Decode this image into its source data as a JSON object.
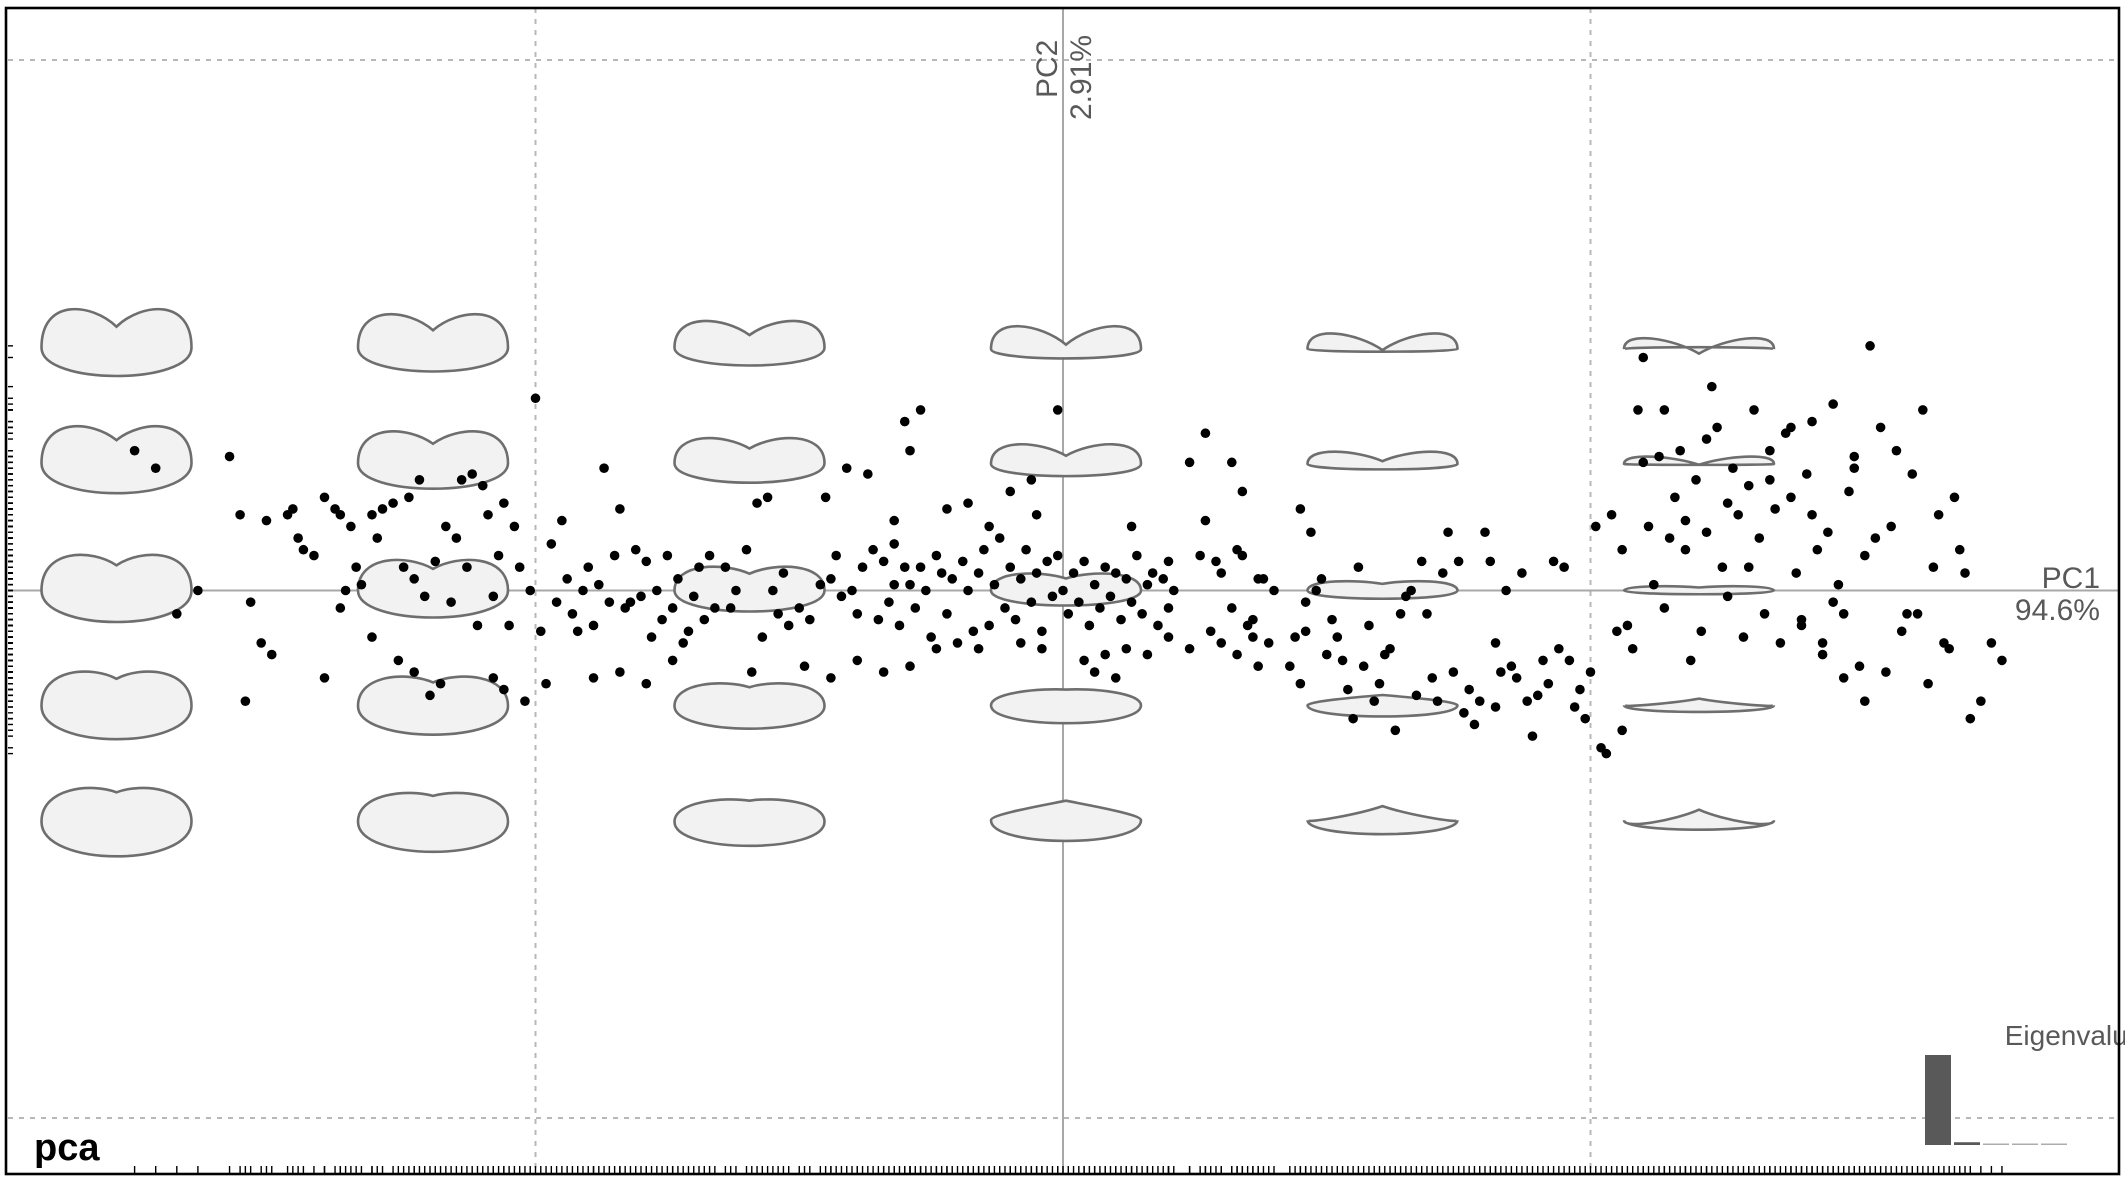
{
  "title": "pca",
  "chart_data": {
    "type": "scatter",
    "xlabel": "PC1",
    "ylabel": "PC2",
    "x_variance_label": "94.6%",
    "y_variance_label": "2.91%",
    "xlim": [
      -0.2,
      0.2
    ],
    "ylim": [
      -0.1,
      0.1
    ],
    "grid": true,
    "point_color": "#000000",
    "shape_fill": "#f2f2f2",
    "shape_stroke": "#6e6e6e",
    "morphospace": {
      "columns_pc1": [
        -0.18,
        -0.12,
        -0.06,
        0.0,
        0.06,
        0.12
      ],
      "rows_pc2": [
        0.042,
        0.022,
        0.0,
        -0.02,
        -0.04
      ]
    },
    "eigenvalues": {
      "title": "Eigenvalues",
      "values": [
        94.6,
        2.91,
        1.2,
        0.6,
        0.4
      ]
    },
    "points": [
      [
        -0.176,
        0.024
      ],
      [
        -0.172,
        0.021
      ],
      [
        -0.164,
        0.0
      ],
      [
        -0.168,
        -0.004
      ],
      [
        -0.158,
        0.023
      ],
      [
        -0.156,
        0.013
      ],
      [
        -0.154,
        -0.002
      ],
      [
        -0.155,
        -0.019
      ],
      [
        -0.152,
        -0.009
      ],
      [
        -0.151,
        0.012
      ],
      [
        -0.15,
        -0.011
      ],
      [
        -0.147,
        0.013
      ],
      [
        -0.146,
        0.014
      ],
      [
        -0.145,
        0.009
      ],
      [
        -0.144,
        0.007
      ],
      [
        -0.142,
        0.006
      ],
      [
        -0.14,
        -0.015
      ],
      [
        -0.14,
        0.016
      ],
      [
        -0.138,
        0.014
      ],
      [
        -0.137,
        0.013
      ],
      [
        -0.137,
        -0.003
      ],
      [
        -0.136,
        0.0
      ],
      [
        -0.135,
        0.011
      ],
      [
        -0.134,
        0.004
      ],
      [
        -0.133,
        0.001
      ],
      [
        -0.131,
        0.013
      ],
      [
        -0.131,
        -0.008
      ],
      [
        -0.13,
        0.009
      ],
      [
        -0.129,
        0.014
      ],
      [
        -0.127,
        0.015
      ],
      [
        -0.126,
        -0.012
      ],
      [
        -0.125,
        0.004
      ],
      [
        -0.124,
        0.016
      ],
      [
        -0.123,
        0.002
      ],
      [
        -0.123,
        -0.014
      ],
      [
        -0.122,
        0.019
      ],
      [
        -0.121,
        -0.001
      ],
      [
        -0.12,
        -0.018
      ],
      [
        -0.119,
        0.005
      ],
      [
        -0.118,
        -0.016
      ],
      [
        -0.117,
        0.011
      ],
      [
        -0.116,
        -0.002
      ],
      [
        -0.115,
        0.009
      ],
      [
        -0.114,
        0.019
      ],
      [
        -0.113,
        0.004
      ],
      [
        -0.112,
        0.02
      ],
      [
        -0.111,
        -0.006
      ],
      [
        -0.11,
        0.018
      ],
      [
        -0.109,
        0.013
      ],
      [
        -0.108,
        -0.015
      ],
      [
        -0.108,
        -0.001
      ],
      [
        -0.107,
        0.006
      ],
      [
        -0.106,
        -0.017
      ],
      [
        -0.106,
        0.015
      ],
      [
        -0.105,
        -0.006
      ],
      [
        -0.104,
        0.011
      ],
      [
        -0.103,
        0.004
      ],
      [
        -0.102,
        -0.019
      ],
      [
        -0.101,
        0.0
      ],
      [
        -0.1,
        0.033
      ],
      [
        -0.099,
        -0.007
      ],
      [
        -0.098,
        -0.016
      ],
      [
        -0.097,
        0.008
      ],
      [
        -0.096,
        -0.002
      ],
      [
        -0.095,
        0.012
      ],
      [
        -0.094,
        0.002
      ],
      [
        -0.093,
        -0.004
      ],
      [
        -0.092,
        -0.007
      ],
      [
        -0.091,
        0.0
      ],
      [
        -0.09,
        0.004
      ],
      [
        -0.089,
        -0.006
      ],
      [
        -0.088,
        0.001
      ],
      [
        -0.087,
        0.021
      ],
      [
        -0.086,
        -0.002
      ],
      [
        -0.085,
        0.006
      ],
      [
        -0.084,
        0.014
      ],
      [
        -0.083,
        -0.003
      ],
      [
        -0.082,
        -0.002
      ],
      [
        -0.081,
        0.007
      ],
      [
        -0.08,
        -0.001
      ],
      [
        -0.079,
        0.005
      ],
      [
        -0.078,
        -0.008
      ],
      [
        -0.077,
        0.0
      ],
      [
        -0.076,
        -0.005
      ],
      [
        -0.075,
        0.006
      ],
      [
        -0.074,
        -0.003
      ],
      [
        -0.073,
        0.002
      ],
      [
        -0.072,
        -0.009
      ],
      [
        -0.071,
        -0.007
      ],
      [
        -0.07,
        -0.001
      ],
      [
        -0.069,
        0.004
      ],
      [
        -0.068,
        -0.005
      ],
      [
        -0.067,
        0.006
      ],
      [
        -0.066,
        -0.003
      ],
      [
        -0.064,
        0.004
      ],
      [
        -0.063,
        -0.003
      ],
      [
        -0.062,
        0.0
      ],
      [
        -0.06,
        0.007
      ],
      [
        -0.058,
        0.015
      ],
      [
        -0.057,
        -0.008
      ],
      [
        -0.056,
        0.016
      ],
      [
        -0.055,
        0.0
      ],
      [
        -0.054,
        -0.004
      ],
      [
        -0.053,
        0.003
      ],
      [
        -0.052,
        -0.006
      ],
      [
        -0.05,
        -0.003
      ],
      [
        -0.048,
        -0.005
      ],
      [
        -0.046,
        0.001
      ],
      [
        -0.045,
        0.016
      ],
      [
        -0.044,
        0.002
      ],
      [
        -0.043,
        0.006
      ],
      [
        -0.042,
        -0.001
      ],
      [
        -0.041,
        0.021
      ],
      [
        -0.04,
        0.0
      ],
      [
        -0.039,
        -0.004
      ],
      [
        -0.038,
        0.004
      ],
      [
        -0.037,
        0.02
      ],
      [
        -0.036,
        0.007
      ],
      [
        -0.035,
        -0.005
      ],
      [
        -0.034,
        0.005
      ],
      [
        -0.033,
        -0.002
      ],
      [
        -0.032,
        0.001
      ],
      [
        -0.031,
        -0.006
      ],
      [
        -0.03,
        0.004
      ],
      [
        -0.029,
        0.001
      ],
      [
        -0.028,
        -0.003
      ],
      [
        -0.027,
        0.004
      ],
      [
        -0.026,
        0.0
      ],
      [
        -0.025,
        -0.008
      ],
      [
        -0.024,
        0.006
      ],
      [
        -0.023,
        0.003
      ],
      [
        -0.022,
        -0.004
      ],
      [
        -0.021,
        0.002
      ],
      [
        -0.02,
        -0.009
      ],
      [
        -0.019,
        0.005
      ],
      [
        -0.018,
        0.0
      ],
      [
        -0.017,
        -0.007
      ],
      [
        -0.016,
        0.003
      ],
      [
        -0.015,
        0.007
      ],
      [
        -0.014,
        -0.006
      ],
      [
        -0.013,
        0.001
      ],
      [
        -0.012,
        0.009
      ],
      [
        -0.011,
        -0.003
      ],
      [
        -0.01,
        0.004
      ],
      [
        -0.009,
        -0.005
      ],
      [
        -0.008,
        0.002
      ],
      [
        -0.007,
        0.007
      ],
      [
        -0.006,
        -0.002
      ],
      [
        -0.005,
        0.003
      ],
      [
        -0.004,
        -0.007
      ],
      [
        -0.003,
        0.005
      ],
      [
        -0.002,
        -0.001
      ],
      [
        -0.001,
        0.006
      ],
      [
        0.0,
        0.0
      ],
      [
        0.001,
        -0.004
      ],
      [
        0.002,
        0.003
      ],
      [
        0.003,
        -0.002
      ],
      [
        0.004,
        0.005
      ],
      [
        0.005,
        -0.006
      ],
      [
        0.006,
        0.001
      ],
      [
        0.007,
        -0.003
      ],
      [
        0.008,
        0.004
      ],
      [
        0.009,
        -0.001
      ],
      [
        0.01,
        0.003
      ],
      [
        0.011,
        -0.005
      ],
      [
        0.012,
        0.002
      ],
      [
        0.013,
        -0.002
      ],
      [
        0.014,
        0.006
      ],
      [
        0.015,
        -0.004
      ],
      [
        0.016,
        0.001
      ],
      [
        0.017,
        0.003
      ],
      [
        0.018,
        -0.006
      ],
      [
        0.019,
        0.002
      ],
      [
        0.02,
        -0.003
      ],
      [
        0.021,
        0.0
      ],
      [
        -0.089,
        -0.015
      ],
      [
        -0.084,
        -0.014
      ],
      [
        -0.079,
        -0.016
      ],
      [
        -0.074,
        -0.012
      ],
      [
        -0.059,
        -0.014
      ],
      [
        -0.049,
        -0.013
      ],
      [
        -0.044,
        -0.015
      ],
      [
        -0.039,
        -0.012
      ],
      [
        -0.034,
        -0.014
      ],
      [
        -0.029,
        -0.013
      ],
      [
        -0.024,
        -0.01
      ],
      [
        -0.022,
        0.014
      ],
      [
        -0.018,
        0.015
      ],
      [
        -0.014,
        0.011
      ],
      [
        -0.01,
        0.017
      ],
      [
        -0.006,
        0.019
      ],
      [
        -0.027,
        0.031
      ],
      [
        -0.03,
        0.029
      ],
      [
        -0.029,
        0.024
      ],
      [
        -0.032,
        0.012
      ],
      [
        -0.032,
        0.008
      ],
      [
        -0.016,
        -0.01
      ],
      [
        -0.008,
        -0.009
      ],
      [
        -0.004,
        -0.01
      ],
      [
        0.004,
        -0.012
      ],
      [
        0.006,
        -0.014
      ],
      [
        0.008,
        -0.011
      ],
      [
        0.01,
        -0.015
      ],
      [
        0.012,
        -0.01
      ],
      [
        0.016,
        -0.011
      ],
      [
        0.02,
        -0.008
      ],
      [
        0.024,
        -0.01
      ],
      [
        0.013,
        0.011
      ],
      [
        0.02,
        0.005
      ],
      [
        -0.005,
        0.013
      ],
      [
        -0.001,
        0.031
      ],
      [
        0.027,
        0.027
      ],
      [
        0.024,
        0.022
      ],
      [
        0.027,
        0.012
      ],
      [
        0.033,
        0.007
      ],
      [
        0.032,
        0.022
      ],
      [
        0.026,
        0.006
      ],
      [
        0.029,
        0.005
      ],
      [
        0.03,
        0.003
      ],
      [
        0.034,
        0.006
      ],
      [
        0.037,
        0.002
      ],
      [
        0.032,
        -0.003
      ],
      [
        0.036,
        -0.005
      ],
      [
        0.036,
        -0.008
      ],
      [
        0.028,
        -0.007
      ],
      [
        0.03,
        -0.009
      ],
      [
        0.033,
        -0.011
      ],
      [
        0.039,
        -0.009
      ],
      [
        0.034,
        0.017
      ],
      [
        0.035,
        -0.006
      ],
      [
        0.037,
        -0.013
      ],
      [
        0.04,
        0.0
      ],
      [
        0.038,
        0.002
      ],
      [
        0.045,
        0.014
      ],
      [
        0.047,
        0.01
      ],
      [
        0.046,
        -0.002
      ],
      [
        0.046,
        -0.007
      ],
      [
        0.043,
        -0.013
      ],
      [
        0.044,
        -0.008
      ],
      [
        0.048,
        0.0
      ],
      [
        0.045,
        -0.016
      ],
      [
        0.049,
        0.002
      ],
      [
        0.05,
        -0.011
      ],
      [
        0.051,
        -0.005
      ],
      [
        0.052,
        -0.008
      ],
      [
        0.053,
        -0.012
      ],
      [
        0.054,
        -0.017
      ],
      [
        0.055,
        -0.022
      ],
      [
        0.056,
        0.004
      ],
      [
        0.058,
        -0.006
      ],
      [
        0.057,
        -0.013
      ],
      [
        0.059,
        -0.019
      ],
      [
        0.06,
        -0.016
      ],
      [
        0.062,
        -0.01
      ],
      [
        0.061,
        -0.011
      ],
      [
        0.063,
        -0.024
      ],
      [
        0.064,
        -0.004
      ],
      [
        0.065,
        -0.001
      ],
      [
        0.066,
        0.0
      ],
      [
        0.067,
        -0.018
      ],
      [
        0.068,
        0.005
      ],
      [
        0.069,
        -0.004
      ],
      [
        0.07,
        -0.015
      ],
      [
        0.071,
        -0.019
      ],
      [
        0.072,
        0.003
      ],
      [
        0.073,
        0.01
      ],
      [
        0.074,
        -0.014
      ],
      [
        0.075,
        0.005
      ],
      [
        0.076,
        -0.021
      ],
      [
        0.077,
        -0.017
      ],
      [
        0.078,
        -0.023
      ],
      [
        0.079,
        -0.019
      ],
      [
        0.08,
        0.01
      ],
      [
        0.081,
        0.005
      ],
      [
        0.082,
        -0.009
      ],
      [
        0.082,
        -0.02
      ],
      [
        0.083,
        -0.014
      ],
      [
        0.084,
        0.0
      ],
      [
        0.085,
        -0.013
      ],
      [
        0.086,
        -0.015
      ],
      [
        0.087,
        0.003
      ],
      [
        0.088,
        -0.019
      ],
      [
        0.089,
        -0.025
      ],
      [
        0.09,
        -0.018
      ],
      [
        0.091,
        -0.012
      ],
      [
        0.092,
        -0.016
      ],
      [
        0.093,
        0.005
      ],
      [
        0.094,
        -0.01
      ],
      [
        0.095,
        0.004
      ],
      [
        0.096,
        -0.012
      ],
      [
        0.097,
        -0.02
      ],
      [
        0.098,
        -0.017
      ],
      [
        0.099,
        -0.022
      ],
      [
        0.1,
        -0.014
      ],
      [
        0.101,
        0.011
      ],
      [
        0.102,
        -0.027
      ],
      [
        0.103,
        -0.028
      ],
      [
        0.104,
        0.013
      ],
      [
        0.105,
        -0.007
      ],
      [
        0.106,
        -0.024
      ],
      [
        0.107,
        -0.006
      ],
      [
        0.108,
        -0.01
      ],
      [
        0.109,
        0.031
      ],
      [
        0.11,
        0.04
      ],
      [
        0.111,
        0.011
      ],
      [
        0.112,
        0.001
      ],
      [
        0.113,
        0.023
      ],
      [
        0.114,
        -0.003
      ],
      [
        0.115,
        0.009
      ],
      [
        0.116,
        0.016
      ],
      [
        0.117,
        0.024
      ],
      [
        0.118,
        0.007
      ],
      [
        0.119,
        -0.012
      ],
      [
        0.12,
        0.019
      ],
      [
        0.121,
        -0.007
      ],
      [
        0.122,
        0.01
      ],
      [
        0.123,
        0.035
      ],
      [
        0.124,
        0.028
      ],
      [
        0.125,
        0.004
      ],
      [
        0.126,
        -0.001
      ],
      [
        0.127,
        0.021
      ],
      [
        0.128,
        0.013
      ],
      [
        0.129,
        -0.008
      ],
      [
        0.13,
        0.018
      ],
      [
        0.131,
        0.031
      ],
      [
        0.132,
        0.009
      ],
      [
        0.133,
        -0.004
      ],
      [
        0.134,
        0.024
      ],
      [
        0.135,
        0.014
      ],
      [
        0.136,
        -0.009
      ],
      [
        0.137,
        0.027
      ],
      [
        0.138,
        0.016
      ],
      [
        0.139,
        0.003
      ],
      [
        0.14,
        -0.006
      ],
      [
        0.141,
        0.02
      ],
      [
        0.142,
        0.029
      ],
      [
        0.143,
        0.007
      ],
      [
        0.144,
        -0.011
      ],
      [
        0.145,
        0.01
      ],
      [
        0.146,
        0.032
      ],
      [
        0.147,
        0.001
      ],
      [
        0.148,
        -0.004
      ],
      [
        0.149,
        0.017
      ],
      [
        0.15,
        0.023
      ],
      [
        0.151,
        -0.013
      ],
      [
        0.152,
        0.006
      ],
      [
        0.153,
        0.042
      ],
      [
        0.155,
        0.028
      ],
      [
        0.157,
        0.011
      ],
      [
        0.159,
        -0.007
      ],
      [
        0.161,
        0.02
      ],
      [
        0.163,
        0.031
      ],
      [
        0.165,
        0.004
      ],
      [
        0.167,
        -0.009
      ],
      [
        0.169,
        0.016
      ],
      [
        0.171,
        0.003
      ],
      [
        0.172,
        -0.022
      ],
      [
        0.106,
        0.007
      ],
      [
        0.11,
        0.022
      ],
      [
        0.114,
        0.031
      ],
      [
        0.118,
        0.012
      ],
      [
        0.122,
        0.026
      ],
      [
        0.126,
        0.015
      ],
      [
        0.13,
        0.004
      ],
      [
        0.134,
        0.019
      ],
      [
        0.138,
        0.028
      ],
      [
        0.142,
        0.013
      ],
      [
        0.146,
        -0.002
      ],
      [
        0.15,
        0.021
      ],
      [
        0.154,
        0.009
      ],
      [
        0.158,
        0.024
      ],
      [
        0.162,
        -0.004
      ],
      [
        0.166,
        0.013
      ],
      [
        0.17,
        0.007
      ],
      [
        0.14,
        -0.005
      ],
      [
        0.144,
        -0.009
      ],
      [
        0.148,
        -0.015
      ],
      [
        0.152,
        -0.019
      ],
      [
        0.156,
        -0.014
      ],
      [
        0.16,
        -0.004
      ],
      [
        0.164,
        -0.016
      ],
      [
        0.168,
        -0.01
      ],
      [
        0.174,
        -0.019
      ],
      [
        0.176,
        -0.009
      ],
      [
        0.178,
        -0.012
      ]
    ]
  }
}
